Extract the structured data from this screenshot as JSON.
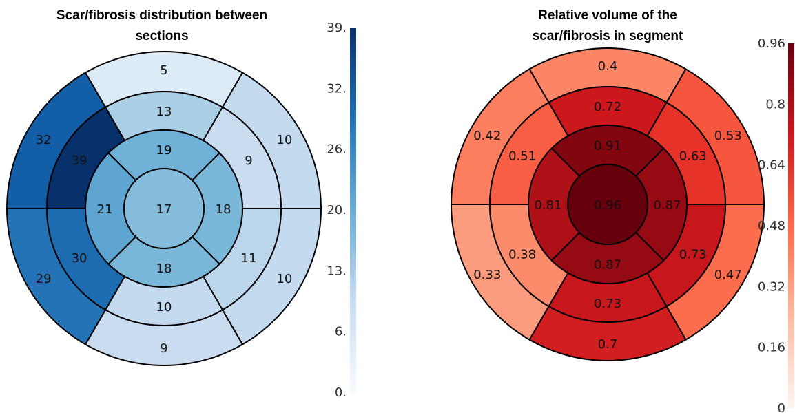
{
  "chart_data": [
    {
      "type": "bullseye",
      "title_lines": [
        "Scar/fibrosis distribution between",
        "sections"
      ],
      "colormap": "blues",
      "vmin": 0,
      "vmax": 39,
      "rings": [
        {
          "name": "outer",
          "values": [
            5,
            10,
            10,
            9,
            29,
            32
          ],
          "labels": [
            "5",
            "10",
            "10",
            "9",
            "29",
            "32"
          ]
        },
        {
          "name": "middle",
          "values": [
            13,
            9,
            11,
            10,
            30,
            39
          ],
          "labels": [
            "13",
            "9",
            "11",
            "10",
            "30",
            "39"
          ]
        },
        {
          "name": "inner",
          "values": [
            19,
            18,
            18,
            21
          ],
          "labels": [
            "19",
            "18",
            "18",
            "21"
          ]
        },
        {
          "name": "apex",
          "values": [
            17
          ],
          "labels": [
            "17"
          ]
        }
      ],
      "colorbar_ticks": [
        "39.",
        "32.",
        "26.",
        "20.",
        "13.",
        "6.",
        "0."
      ]
    },
    {
      "type": "bullseye",
      "title_lines": [
        "Relative volume of the",
        "scar/fibrosis in segment"
      ],
      "colormap": "reds",
      "vmin": 0,
      "vmax": 0.96,
      "rings": [
        {
          "name": "outer",
          "values": [
            0.4,
            0.53,
            0.47,
            0.7,
            0.33,
            0.42
          ],
          "labels": [
            "0.4",
            "0.53",
            "0.47",
            "0.7",
            "0.33",
            "0.42"
          ]
        },
        {
          "name": "middle",
          "values": [
            0.72,
            0.63,
            0.73,
            0.73,
            0.38,
            0.51
          ],
          "labels": [
            "0.72",
            "0.63",
            "0.73",
            "0.73",
            "0.38",
            "0.51"
          ]
        },
        {
          "name": "inner",
          "values": [
            0.91,
            0.87,
            0.87,
            0.81
          ],
          "labels": [
            "0.91",
            "0.87",
            "0.87",
            "0.81"
          ]
        },
        {
          "name": "apex",
          "values": [
            0.96
          ],
          "labels": [
            "0.96"
          ]
        }
      ],
      "colorbar_ticks": [
        "0.96",
        "0.8",
        "0.64",
        "0.48",
        "0.32",
        "0.16",
        "0"
      ]
    }
  ]
}
